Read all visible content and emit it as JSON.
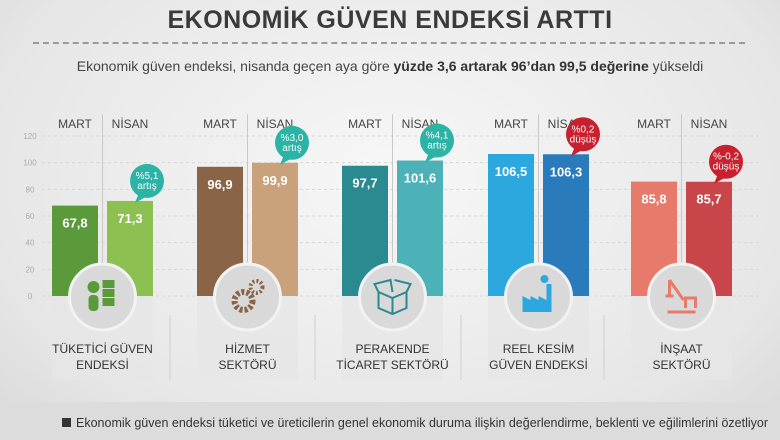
{
  "title": "EKONOMİK GÜVEN ENDEKSİ ARTTI",
  "subtitle": {
    "pre": "Ekonomik güven endeksi, nisanda geçen aya göre ",
    "bold": "yüzde 3,6 artarak 96’dan 99,5 değerine",
    "post": " yükseldi"
  },
  "footnote": "Ekonomik güven endeksi tüketici ve üreticilerin genel ekonomik duruma ilişkin değerlendirme, beklenti ve eğilimlerini özetliyor",
  "chart_data": {
    "type": "bar",
    "ylim": [
      0,
      120
    ],
    "yticks": [
      "0",
      "20",
      "40",
      "60",
      "80",
      "100",
      "120"
    ],
    "period_labels": [
      "MART",
      "NİSAN"
    ],
    "grid": true,
    "groups": [
      {
        "name_lines": [
          "TÜKETİCİ GÜVEN",
          "ENDEKSİ"
        ],
        "values": [
          67.8,
          71.3
        ],
        "value_labels": [
          "67,8",
          "71,3"
        ],
        "badge": [
          "%5,1",
          "artış"
        ],
        "badge_color": "#2bb3a6",
        "colors": [
          "#5b9a3a",
          "#8cc152"
        ],
        "icon": "consumer-boxes-icon"
      },
      {
        "name_lines": [
          "HİZMET",
          "SEKTÖRÜ"
        ],
        "values": [
          96.9,
          99.9
        ],
        "value_labels": [
          "96,9",
          "99,9"
        ],
        "badge": [
          "%3,0",
          "artış"
        ],
        "badge_color": "#2bb3a6",
        "colors": [
          "#8a6446",
          "#c9a27b"
        ],
        "icon": "gears-icon"
      },
      {
        "name_lines": [
          "PERAKENDE",
          "TİCARET SEKTÖRÜ"
        ],
        "values": [
          97.7,
          101.6
        ],
        "value_labels": [
          "97,7",
          "101,6"
        ],
        "badge": [
          "%4,1",
          "artış"
        ],
        "badge_color": "#2bb3a6",
        "colors": [
          "#2b8990",
          "#4db2b8"
        ],
        "icon": "box-icon"
      },
      {
        "name_lines": [
          "REEL KESİM",
          "GÜVEN ENDEKSİ"
        ],
        "values": [
          106.5,
          106.3
        ],
        "value_labels": [
          "106,5",
          "106,3"
        ],
        "badge": [
          "%0,2",
          "düşüş"
        ],
        "badge_color": "#c8202f",
        "colors": [
          "#2da8df",
          "#2a7bbb"
        ],
        "icon": "factory-icon"
      },
      {
        "name_lines": [
          "İNŞAAT",
          "SEKTÖRÜ"
        ],
        "values": [
          85.8,
          85.7
        ],
        "value_labels": [
          "85,8",
          "85,7"
        ],
        "badge": [
          "%-0,2",
          "düşüş"
        ],
        "badge_color": "#c8202f",
        "colors": [
          "#e87a6c",
          "#c8454a"
        ],
        "icon": "crane-icon"
      }
    ]
  }
}
